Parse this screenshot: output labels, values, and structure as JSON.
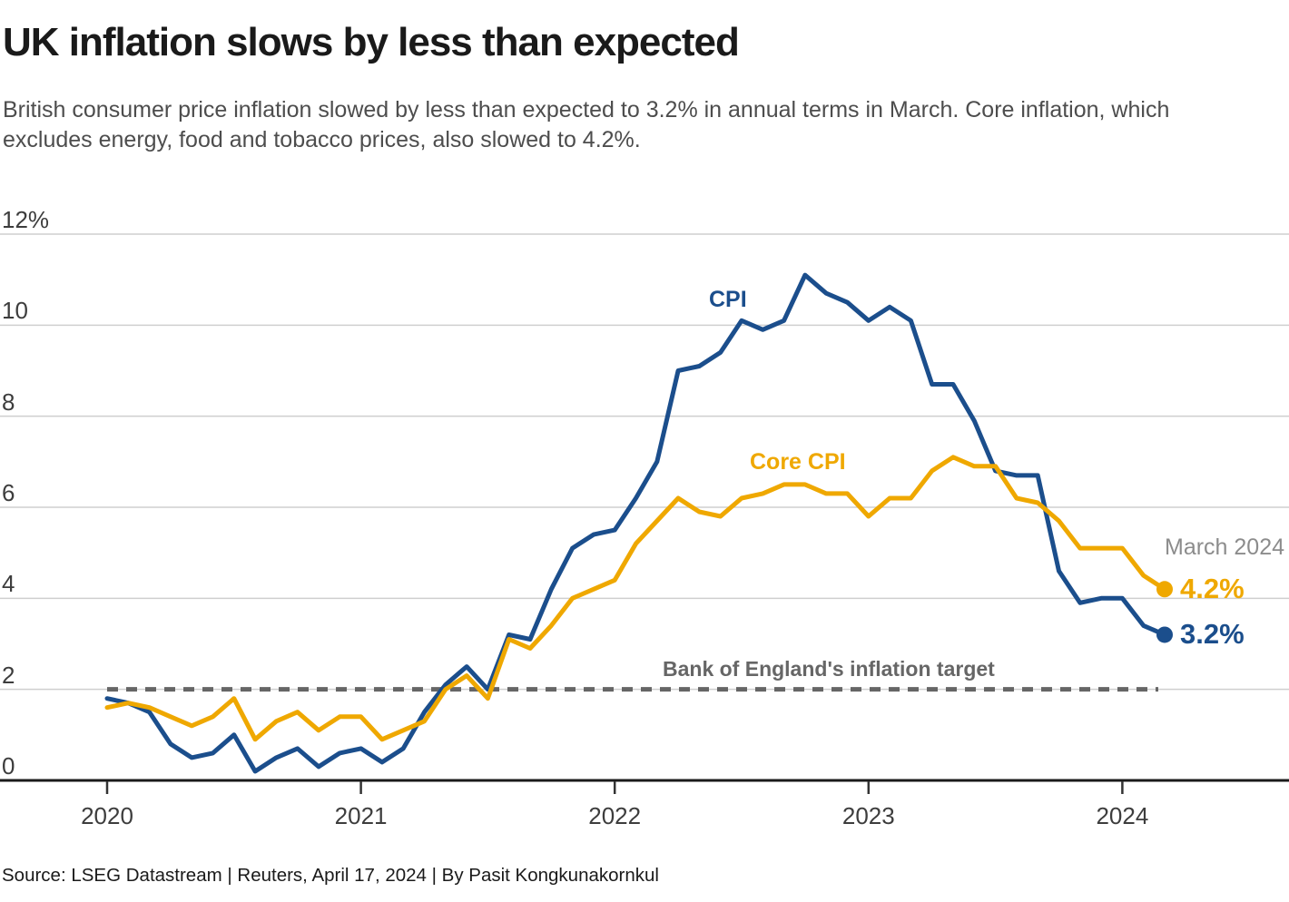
{
  "header": {
    "title": "UK inflation slows by less than expected",
    "subtitle": "British consumer price inflation slowed by less than expected to 3.2% in annual terms in March. Core inflation, which excludes energy, food and tobacco prices, also slowed to 4.2%."
  },
  "chart_data": {
    "type": "line",
    "title": "UK inflation slows by less than expected",
    "x_start": "2020-01",
    "x_end": "2024-03",
    "frequency": "monthly",
    "ylim": [
      0,
      12
    ],
    "yticks": [
      "0",
      "2",
      "4",
      "6",
      "8",
      "10",
      "12%"
    ],
    "xticks": [
      "2020",
      "2021",
      "2022",
      "2023",
      "2024"
    ],
    "grid": "horizontal",
    "legend_position": "inline-labels",
    "series": [
      {
        "name": "CPI",
        "color": "#1b4e8c",
        "values": [
          1.8,
          1.7,
          1.5,
          0.8,
          0.5,
          0.6,
          1.0,
          0.2,
          0.5,
          0.7,
          0.3,
          0.6,
          0.7,
          0.4,
          0.7,
          1.5,
          2.1,
          2.5,
          2.0,
          3.2,
          3.1,
          4.2,
          5.1,
          5.4,
          5.5,
          6.2,
          7.0,
          9.0,
          9.1,
          9.4,
          10.1,
          9.9,
          10.1,
          11.1,
          10.7,
          10.5,
          10.1,
          10.4,
          10.1,
          8.7,
          8.7,
          7.9,
          6.8,
          6.7,
          6.7,
          4.6,
          3.9,
          4.0,
          4.0,
          3.4,
          3.2
        ]
      },
      {
        "name": "Core CPI",
        "color": "#efa800",
        "values": [
          1.6,
          1.7,
          1.6,
          1.4,
          1.2,
          1.4,
          1.8,
          0.9,
          1.3,
          1.5,
          1.1,
          1.4,
          1.4,
          0.9,
          1.1,
          1.3,
          2.0,
          2.3,
          1.8,
          3.1,
          2.9,
          3.4,
          4.0,
          4.2,
          4.4,
          5.2,
          5.7,
          6.2,
          5.9,
          5.8,
          6.2,
          6.3,
          6.5,
          6.5,
          6.3,
          6.3,
          5.8,
          6.2,
          6.2,
          6.8,
          7.1,
          6.9,
          6.9,
          6.2,
          6.1,
          5.7,
          5.1,
          5.1,
          5.1,
          4.5,
          4.2
        ]
      }
    ],
    "target_line": {
      "label": "Bank of England's inflation target",
      "value": 2,
      "color": "#666666",
      "style": "dashed"
    },
    "annotations": {
      "period_label": "March 2024",
      "end_labels": [
        {
          "series": "Core CPI",
          "text": "4.2%",
          "value": 4.2
        },
        {
          "series": "CPI",
          "text": "3.2%",
          "value": 3.2
        }
      ]
    },
    "colors": {
      "gridline": "#cfcfcf",
      "axis": "#1a1a1a",
      "tick_label": "#3d3d3d"
    }
  },
  "footer": {
    "source": "Source: LSEG Datastream | Reuters, April 17, 2024 | By Pasit Kongkunakornkul"
  }
}
